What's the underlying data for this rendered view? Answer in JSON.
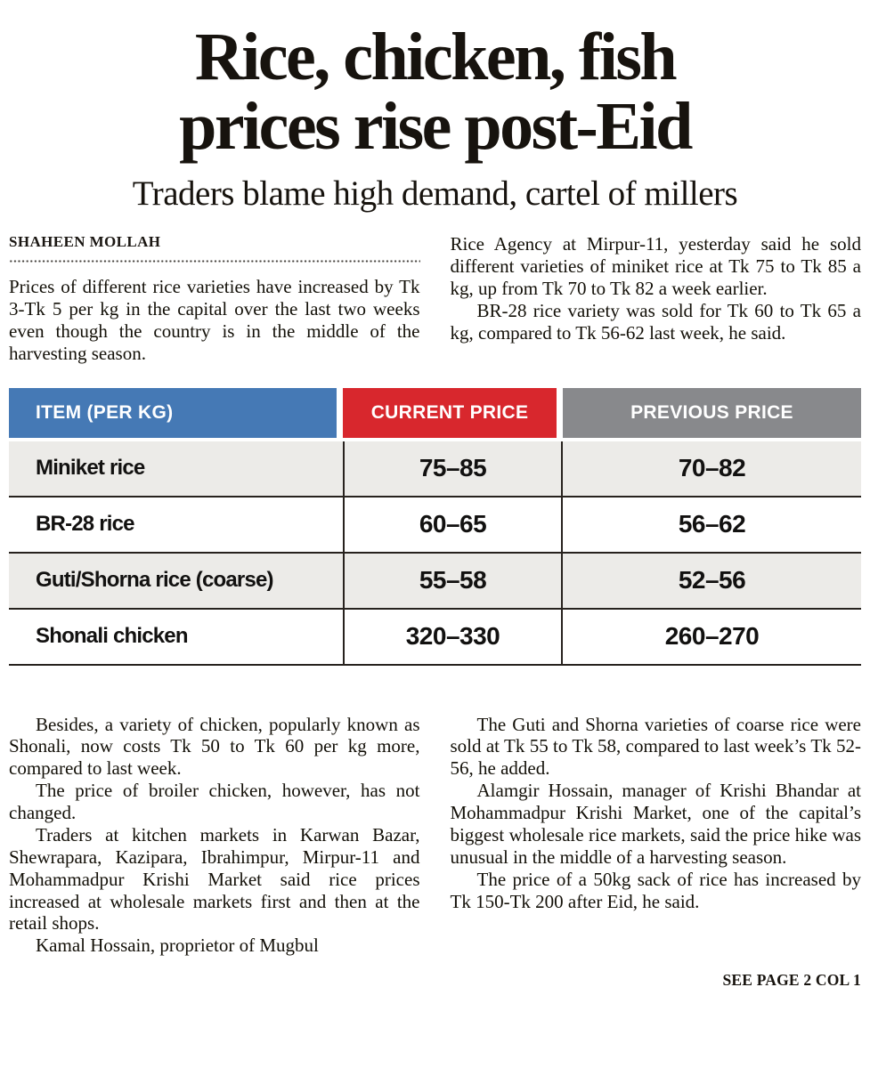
{
  "headline": {
    "line1": "Rice, chicken, fish",
    "line2": "prices rise post-Eid"
  },
  "subheadline": "Traders blame high demand, cartel of millers",
  "byline": "SHAHEEN MOLLAH",
  "article": {
    "left_top": [
      "Prices of different rice varieties have increased by Tk 3-Tk 5 per kg in the capital over the last two weeks even though the country is in the middle of the harvesting season."
    ],
    "right_top": [
      "Rice Agency at Mirpur-11, yesterday said he sold different varieties of miniket rice at Tk 75 to Tk 85 a kg, up from Tk 70 to Tk 82 a week earlier.",
      "BR-28 rice variety was sold for Tk 60 to Tk 65 a kg, compared to Tk 56-62 last week, he said."
    ],
    "left_bottom": [
      "Besides, a variety of chicken, popularly known as Shonali, now costs Tk 50 to Tk 60 per kg more, compared to last week.",
      "The price of broiler chicken, however, has not changed.",
      "Traders at kitchen markets in Karwan Bazar, Shewrapara, Kazipara, Ibrahimpur, Mirpur-11 and Mohammadpur Krishi Market said rice prices increased at wholesale markets first and then at the retail shops.",
      "Kamal Hossain, proprietor of Mugbul"
    ],
    "right_bottom": [
      "The Guti and Shorna varieties of coarse rice were sold at Tk 55 to Tk 58, compared to last week’s Tk 52-56, he added.",
      "Alamgir Hossain, manager of Krishi Bhandar at Mohammadpur Krishi Market, one of the capital’s biggest wholesale rice markets, said the price hike was unusual in the middle of a harvesting season.",
      "The price of a 50kg sack of rice has increased by Tk 150-Tk 200 after Eid, he said."
    ]
  },
  "table": {
    "headers": [
      {
        "label": "ITEM (PER KG)",
        "color": "#4579b5"
      },
      {
        "label": "CURRENT PRICE",
        "color": "#d8272d"
      },
      {
        "label": "PREVIOUS PRICE",
        "color": "#88898c"
      }
    ],
    "rows": [
      {
        "item": "Miniket rice",
        "current": "75–85",
        "previous": "70–82"
      },
      {
        "item": "BR-28 rice",
        "current": "60–65",
        "previous": "56–62"
      },
      {
        "item": "Guti/Shorna rice (coarse)",
        "current": "55–58",
        "previous": "52–56"
      },
      {
        "item": "Shonali chicken",
        "current": "320–330",
        "previous": "260–270"
      }
    ]
  },
  "footer": {
    "see_page": "SEE PAGE 2 COL 1"
  }
}
